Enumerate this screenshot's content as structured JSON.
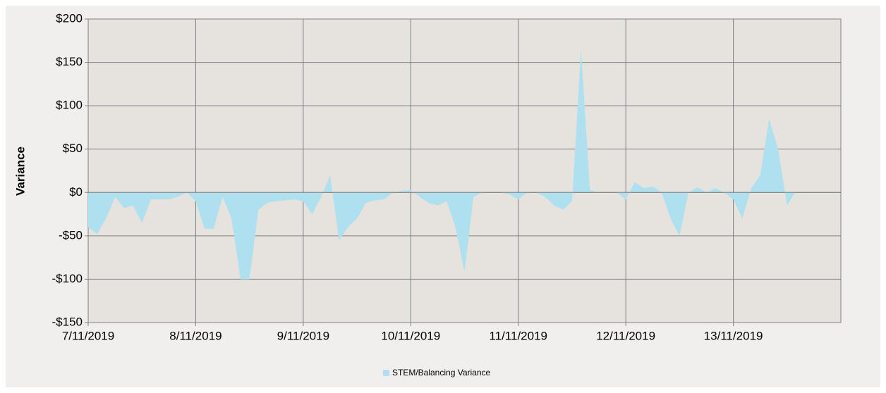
{
  "chart_data": {
    "type": "area",
    "y_label": "Variance",
    "series": [
      {
        "name": "STEM/Balancing Variance",
        "color": "#aee0ef",
        "values": [
          -40,
          -48,
          -30,
          -5,
          -18,
          -15,
          -35,
          -8,
          -8,
          -8,
          -5,
          0,
          -10,
          -42,
          -42,
          -5,
          -30,
          -100,
          -100,
          -20,
          -12,
          -10,
          -9,
          -8,
          -10,
          -25,
          -5,
          20,
          -55,
          -40,
          -30,
          -12,
          -9,
          -8,
          0,
          2,
          3,
          -5,
          -12,
          -15,
          -10,
          -40,
          -92,
          -5,
          0,
          0,
          0,
          -2,
          -8,
          0,
          0,
          -5,
          -15,
          -20,
          -10,
          165,
          3,
          0,
          0,
          0,
          -8,
          12,
          5,
          7,
          0,
          -30,
          -50,
          0,
          6,
          0,
          5,
          0,
          -8,
          -30,
          5,
          20,
          85,
          50,
          -15,
          2,
          null,
          null,
          null,
          null
        ]
      }
    ],
    "categories": [
      "7/11/2019",
      null,
      null,
      null,
      null,
      null,
      null,
      null,
      null,
      null,
      null,
      null,
      "8/11/2019",
      null,
      null,
      null,
      null,
      null,
      null,
      null,
      null,
      null,
      null,
      null,
      "9/11/2019",
      null,
      null,
      null,
      null,
      null,
      null,
      null,
      null,
      null,
      null,
      null,
      "10/11/2019",
      null,
      null,
      null,
      null,
      null,
      null,
      null,
      null,
      null,
      null,
      null,
      "11/11/2019",
      null,
      null,
      null,
      null,
      null,
      null,
      null,
      null,
      null,
      null,
      null,
      "12/11/2019",
      null,
      null,
      null,
      null,
      null,
      null,
      null,
      null,
      null,
      null,
      null,
      "13/11/2019",
      null,
      null,
      null,
      null,
      null,
      null,
      null,
      null,
      null,
      null,
      null
    ],
    "ylim": [
      -150,
      200
    ],
    "yticks": [
      {
        "value": -150,
        "label": "-$150"
      },
      {
        "value": -100,
        "label": "-$100"
      },
      {
        "value": -50,
        "label": "-$50"
      },
      {
        "value": 0,
        "label": "$0"
      },
      {
        "value": 50,
        "label": "$50"
      },
      {
        "value": 100,
        "label": "$100"
      },
      {
        "value": 150,
        "label": "$150"
      },
      {
        "value": 200,
        "label": "$200"
      }
    ],
    "grid": true,
    "legend": "bottom"
  }
}
